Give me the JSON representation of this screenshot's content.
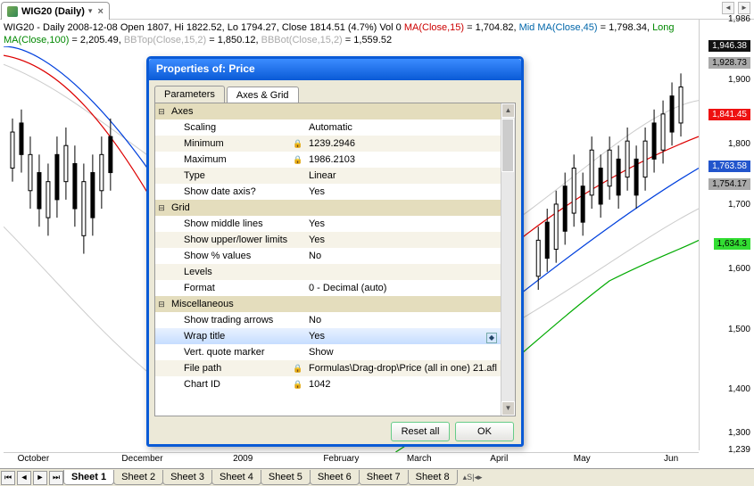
{
  "chart_tab": {
    "title": "WIG20 (Daily)"
  },
  "info": {
    "line1_pre": "WIG20 - Daily 2008-12-08 Open 1807, Hi 1822.52, Lo 1794.27, Close 1814.51 (4.7%) Vol 0 ",
    "ma_label": "MA(Close,15)",
    "ma_val": " = 1,704.82, ",
    "mid_label": "Mid MA(Close,45)",
    "mid_val": " = 1,798.34, ",
    "long_label": "Long MA(Close,100)",
    "long_val": " = 2,205.49, ",
    "bbtop_label": "BBTop(Close,15,2)",
    "bbtop_val": " = 1,850.12, ",
    "bbbot_label": "BBBot(Close,15,2)",
    "bbbot_val": " = 1,559.52"
  },
  "y_axis": {
    "ticks": [
      {
        "v": "1,986",
        "pct": 0
      },
      {
        "v": "1,900",
        "pct": 14
      },
      {
        "v": "1,800",
        "pct": 29
      },
      {
        "v": "1,700",
        "pct": 43
      },
      {
        "v": "1,600",
        "pct": 58
      },
      {
        "v": "1,500",
        "pct": 72
      },
      {
        "v": "1,400",
        "pct": 86
      },
      {
        "v": "1,300",
        "pct": 96
      },
      {
        "v": "1,239",
        "pct": 100
      }
    ],
    "boxes": [
      {
        "v": "1,946.38",
        "cls": "black",
        "pct": 6
      },
      {
        "v": "1,928.73",
        "cls": "gr",
        "pct": 10
      },
      {
        "v": "1,841.45",
        "cls": "red",
        "pct": 22
      },
      {
        "v": "1,763.58",
        "cls": "blue",
        "pct": 34
      },
      {
        "v": "1,754.17",
        "cls": "gr",
        "pct": 38
      },
      {
        "v": "1,634.3",
        "cls": "green",
        "pct": 52
      }
    ]
  },
  "x_axis": {
    "labels": [
      {
        "t": "October",
        "pct": 2
      },
      {
        "t": "December",
        "pct": 17
      },
      {
        "t": "2009",
        "pct": 33
      },
      {
        "t": "February",
        "pct": 46
      },
      {
        "t": "March",
        "pct": 58
      },
      {
        "t": "April",
        "pct": 70
      },
      {
        "t": "May",
        "pct": 82
      },
      {
        "t": "Jun",
        "pct": 95
      }
    ]
  },
  "sheets": [
    "Sheet 1",
    "Sheet 2",
    "Sheet 3",
    "Sheet 4",
    "Sheet 5",
    "Sheet 6",
    "Sheet 7",
    "Sheet 8"
  ],
  "dialog": {
    "title": "Properties of: Price",
    "tabs": [
      "Parameters",
      "Axes & Grid"
    ],
    "active_tab": 1,
    "sections": {
      "axes": "Axes",
      "grid": "Grid",
      "misc": "Miscellaneous"
    },
    "rows": {
      "scaling": {
        "label": "Scaling",
        "value": "Automatic",
        "lock": false
      },
      "minimum": {
        "label": "Minimum",
        "value": "1239.2946",
        "lock": true
      },
      "maximum": {
        "label": "Maximum",
        "value": "1986.2103",
        "lock": true
      },
      "type": {
        "label": "Type",
        "value": "Linear",
        "lock": false
      },
      "showdate": {
        "label": "Show date axis?",
        "value": "Yes",
        "lock": false
      },
      "showmid": {
        "label": "Show middle lines",
        "value": "Yes",
        "lock": false
      },
      "showul": {
        "label": "Show upper/lower limits",
        "value": "Yes",
        "lock": false
      },
      "showpct": {
        "label": "Show % values",
        "value": "No",
        "lock": false
      },
      "levels": {
        "label": "Levels",
        "value": "",
        "lock": false
      },
      "format": {
        "label": "Format",
        "value": "0 - Decimal (auto)",
        "lock": false
      },
      "showarr": {
        "label": "Show trading arrows",
        "value": "No",
        "lock": false
      },
      "wraptitle": {
        "label": "Wrap title",
        "value": "Yes",
        "lock": false,
        "selected": true
      },
      "vqm": {
        "label": "Vert. quote marker",
        "value": "Show",
        "lock": false
      },
      "filepath": {
        "label": "File path",
        "value": "Formulas\\Drag-drop\\Price (all in one) 21.afl",
        "lock": true
      },
      "chartid": {
        "label": "Chart ID",
        "value": "1042",
        "lock": true
      }
    },
    "buttons": {
      "reset": "Reset all",
      "ok": "OK"
    }
  },
  "colors": {
    "long_ma": "#00aa00",
    "ma": "#dd0000",
    "mid_ma": "#0033dd",
    "bb": "#cccccc",
    "dialog_border": "#0a5ad6"
  }
}
